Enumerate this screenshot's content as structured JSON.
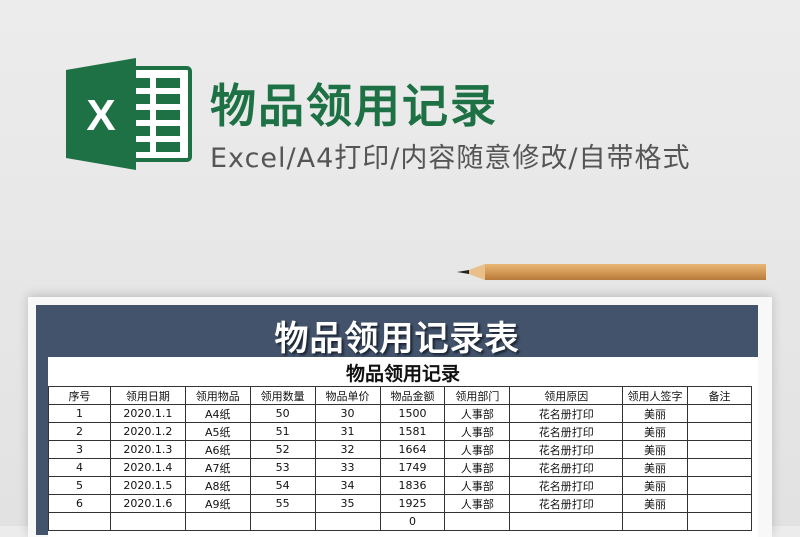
{
  "header": {
    "title": "物品领用记录",
    "subtitle": "Excel/A4打印/内容随意修改/自带格式",
    "logo_letter": "X"
  },
  "colors": {
    "excel_green": "#1e7145",
    "band": "#43536b"
  },
  "sheet": {
    "banner_title": "物品领用记录表",
    "table_title": "物品领用记录",
    "columns": [
      "序号",
      "领用日期",
      "领用物品",
      "领用数量",
      "物品单价",
      "物品金额",
      "领用部门",
      "领用原因",
      "领用人签字",
      "备注"
    ],
    "rows": [
      [
        "1",
        "2020.1.1",
        "A4纸",
        "50",
        "30",
        "1500",
        "人事部",
        "花名册打印",
        "美丽",
        ""
      ],
      [
        "2",
        "2020.1.2",
        "A5纸",
        "51",
        "31",
        "1581",
        "人事部",
        "花名册打印",
        "美丽",
        ""
      ],
      [
        "3",
        "2020.1.3",
        "A6纸",
        "52",
        "32",
        "1664",
        "人事部",
        "花名册打印",
        "美丽",
        ""
      ],
      [
        "4",
        "2020.1.4",
        "A7纸",
        "53",
        "33",
        "1749",
        "人事部",
        "花名册打印",
        "美丽",
        ""
      ],
      [
        "5",
        "2020.1.5",
        "A8纸",
        "54",
        "34",
        "1836",
        "人事部",
        "花名册打印",
        "美丽",
        ""
      ],
      [
        "6",
        "2020.1.6",
        "A9纸",
        "55",
        "35",
        "1925",
        "人事部",
        "花名册打印",
        "美丽",
        ""
      ],
      [
        "",
        "",
        "",
        "",
        "",
        "0",
        "",
        "",
        "",
        ""
      ]
    ]
  }
}
